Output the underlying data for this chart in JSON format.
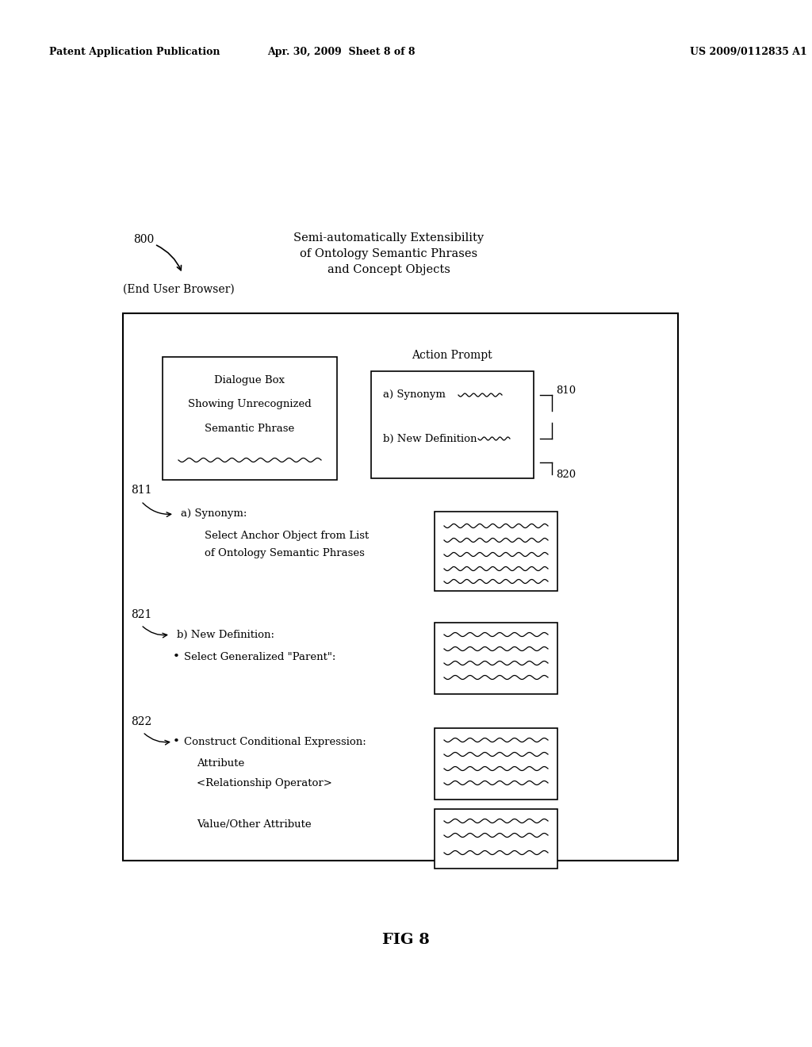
{
  "bg_color": "#ffffff",
  "header_left": "Patent Application Publication",
  "header_mid": "Apr. 30, 2009  Sheet 8 of 8",
  "header_right": "US 2009/0112835 A1",
  "fig_label": "FIG 8",
  "title_800": "800",
  "title_browser": "(End User Browser)",
  "title_main_line1": "Semi-automatically Extensibility",
  "title_main_line2": "of Ontology Semantic Phrases",
  "title_main_line3": "and Concept Objects",
  "dialogue_text_line1": "Dialogue Box",
  "dialogue_text_line2": "Showing Unrecognized",
  "dialogue_text_line3": "Semantic Phrase",
  "action_prompt_label": "Action Prompt",
  "action_line1": "a) Synonym",
  "action_line2": "b) New Definition",
  "label_810": "810",
  "label_820": "820",
  "label_811": "811",
  "label_821": "821",
  "label_822": "822",
  "text_811a": "a) Synonym:",
  "text_811b": "Select Anchor Object from List",
  "text_811c": "of Ontology Semantic Phrases",
  "text_821a": "b) New Definition:",
  "text_821b": "Select Generalized \"Parent\":",
  "text_822a": "Construct Conditional Expression:",
  "text_822b": "Attribute",
  "text_822c": "<Relationship Operator>",
  "text_822d": "Value/Other Attribute"
}
